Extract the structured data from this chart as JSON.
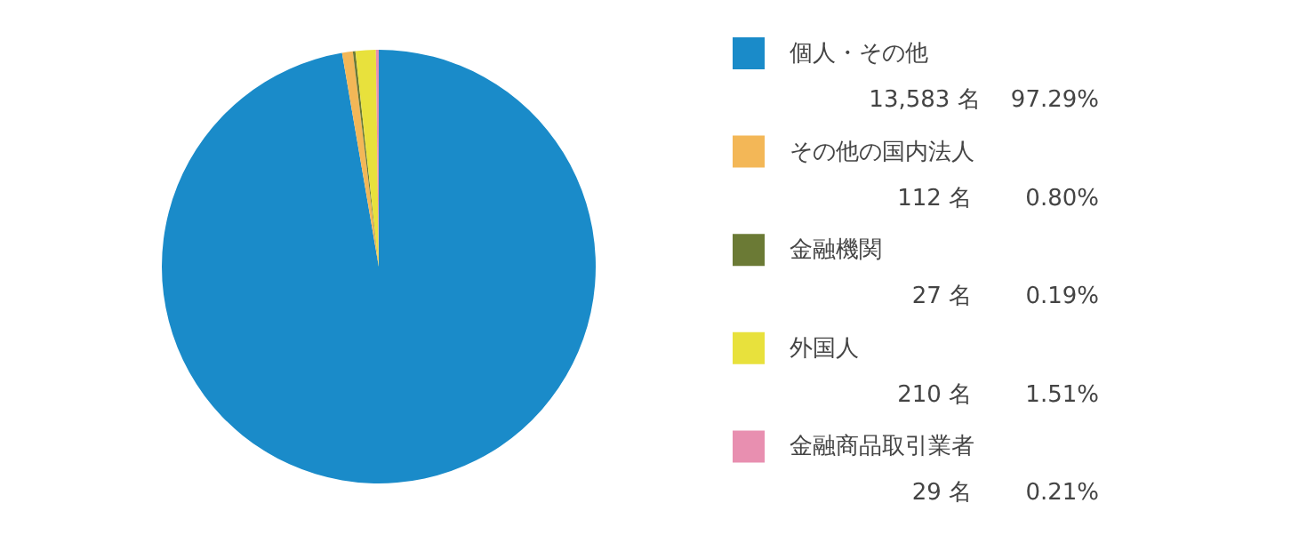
{
  "chart_data": {
    "type": "pie",
    "categories": [
      "個人・その他",
      "その他の国内法人",
      "金融機関",
      "外国人",
      "金融商品取引業者"
    ],
    "values": [
      97.29,
      0.8,
      0.19,
      1.51,
      0.21
    ],
    "colors": [
      "#1a8bc9",
      "#f3b757",
      "#6b7a35",
      "#e8e13c",
      "#e88fb0"
    ],
    "annotations": [
      "13,583 名　 97.29%",
      "112 名　　 0.80%",
      "27 名　　 0.19%",
      "210 名　　 1.51%",
      "29 名　　 0.21%"
    ],
    "legend": "right"
  }
}
